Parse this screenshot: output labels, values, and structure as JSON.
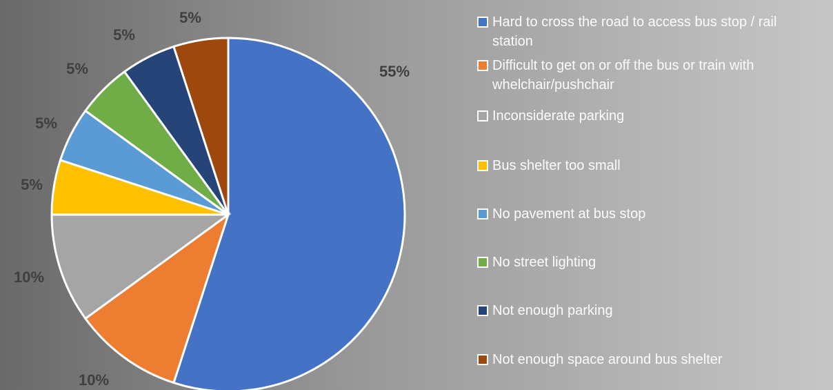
{
  "chart_data": {
    "type": "pie",
    "categories": [
      "Hard to cross the road to access bus stop / rail station",
      "Difficult to get on or off the bus or train with whelchair/pushchair",
      "Inconsiderate parking",
      "Bus shelter too small",
      "No pavement at bus stop",
      "No street lighting",
      "Not enough parking",
      "Not enough space around bus shelter"
    ],
    "values": [
      55,
      10,
      10,
      5,
      5,
      5,
      5,
      5
    ],
    "value_labels": [
      "55%",
      "10%",
      "10%",
      "5%",
      "5%",
      "5%",
      "5%",
      "5%"
    ],
    "colors": [
      "#4472c4",
      "#ed7d31",
      "#a5a5a5",
      "#ffc000",
      "#5b9bd5",
      "#70ad47",
      "#264478",
      "#9e480e"
    ]
  }
}
